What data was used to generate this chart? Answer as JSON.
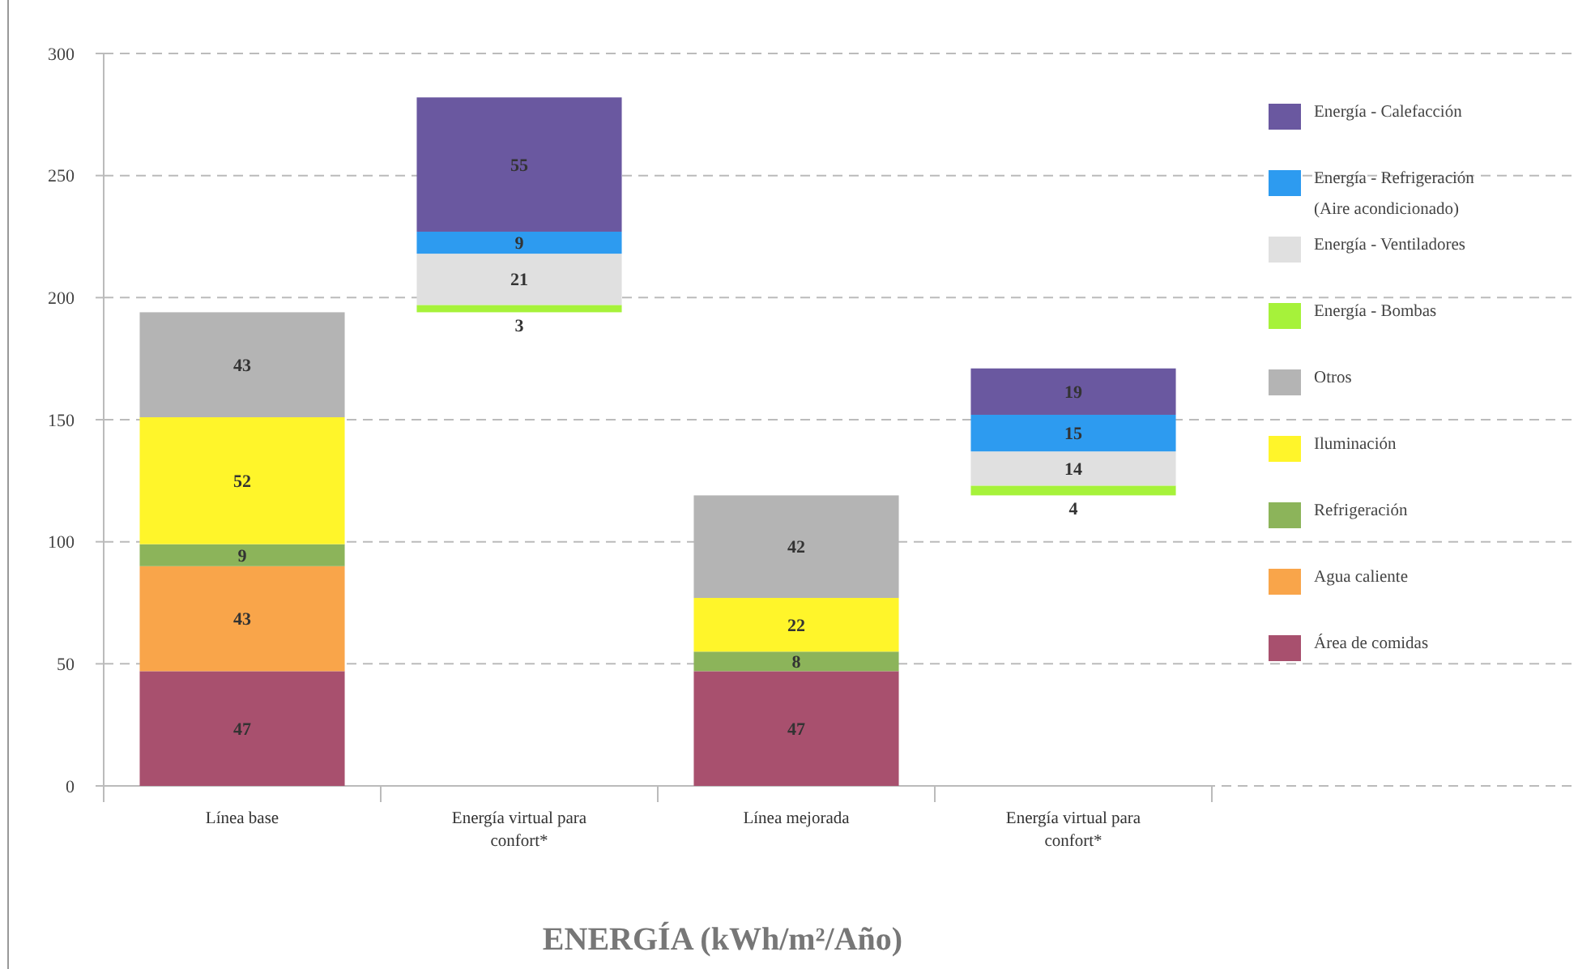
{
  "chart_data": {
    "type": "bar",
    "title": "ENERGÍA (kWh/m²/Año)",
    "stacked": true,
    "categories": [
      "Línea base",
      "Energía virtual para confort*",
      "Línea mejorada",
      "Energía virtual para confort*"
    ],
    "series": [
      {
        "name": "Área de comidas",
        "color": "#a8506e",
        "values": [
          47,
          null,
          47,
          null
        ]
      },
      {
        "name": "Agua caliente",
        "color": "#f9a54a",
        "values": [
          43,
          null,
          null,
          null
        ]
      },
      {
        "name": "Refrigeración",
        "color": "#8cb45a",
        "values": [
          9,
          null,
          8,
          null
        ]
      },
      {
        "name": "Iluminación",
        "color": "#fff52a",
        "values": [
          52,
          null,
          22,
          null
        ]
      },
      {
        "name": "Otros",
        "color": "#b4b4b4",
        "values": [
          43,
          null,
          42,
          null
        ]
      },
      {
        "name": "Energía - Bombas",
        "color": "#a6f23a",
        "values": [
          null,
          3,
          null,
          4
        ],
        "base": [
          null,
          194,
          null,
          119
        ]
      },
      {
        "name": "Energía - Ventiladores",
        "color": "#e0e0e0",
        "values": [
          null,
          21,
          null,
          14
        ]
      },
      {
        "name": "Energía - Refrigeración (Aire acondicionado)",
        "color": "#2d9bf0",
        "values": [
          null,
          9,
          null,
          15
        ]
      },
      {
        "name": "Energía - Calefacción",
        "color": "#6a58a0",
        "values": [
          null,
          55,
          null,
          19
        ]
      }
    ],
    "ylim": [
      0,
      300
    ],
    "yticks": [
      0,
      50,
      100,
      150,
      200,
      250,
      300
    ],
    "grid": "y",
    "legend": "right",
    "data_labels": true
  }
}
